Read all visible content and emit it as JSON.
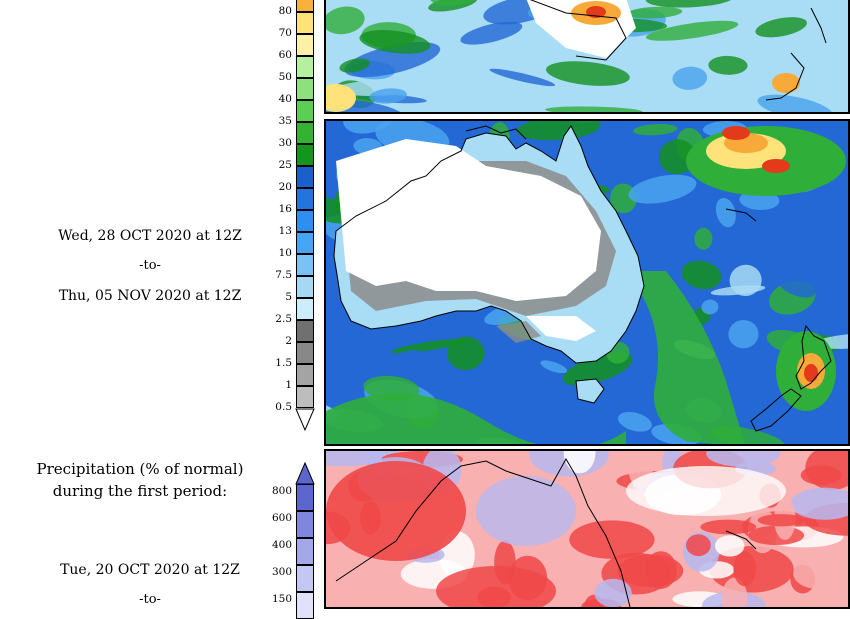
{
  "mid_section": {
    "date_start": "Wed, 28 OCT 2020 at 12Z",
    "to_label": "-to-",
    "date_end": "Thu, 05 NOV 2020 at 12Z"
  },
  "bottom_section": {
    "title_line1": "Precipitation (% of normal)",
    "title_line2": "during the first period:",
    "date_start": "Tue, 20 OCT 2020 at 12Z",
    "to_label": "-to-"
  },
  "precip_colorbar": {
    "labels": [
      "80",
      "70",
      "60",
      "50",
      "40",
      "35",
      "30",
      "25",
      "20",
      "16",
      "13",
      "10",
      "7.5",
      "5",
      "2.5",
      "2",
      "1.5",
      "1",
      "0.5"
    ],
    "colors": [
      "#f7b13c",
      "#ffe27a",
      "#fff0a8",
      "#b5f0a0",
      "#8ee07d",
      "#5ccf52",
      "#36b232",
      "#16951d",
      "#1b60c9",
      "#2474dc",
      "#2f8ff0",
      "#46a6f5",
      "#7ac1f5",
      "#a6d7f3",
      "#cceefa",
      "#707070",
      "#888888",
      "#a4a4a4",
      "#bdbdbd"
    ]
  },
  "percent_colorbar": {
    "labels": [
      "800",
      "600",
      "400",
      "300",
      "150"
    ],
    "colors": [
      "#5c66cc",
      "#7f87dc",
      "#a3a8e8",
      "#c4c7f1",
      "#e0e2fa"
    ]
  },
  "map_colors": {
    "land_dry": "#ffffff",
    "light_blue": "#a9dcf5",
    "mid_blue": "#4aa3ee",
    "dark_blue": "#2368d4",
    "green": "#2fae3a",
    "dark_green": "#149020",
    "gray": "#8c8c8c",
    "light_gray": "#b6b6b6",
    "yellow": "#ffe27a",
    "orange": "#f7a93a",
    "red": "#e33a1c",
    "pct_red": "#f04848",
    "pct_pink": "#f8b0b0",
    "pct_blue": "#b7b9f0",
    "coast": "#000000"
  }
}
